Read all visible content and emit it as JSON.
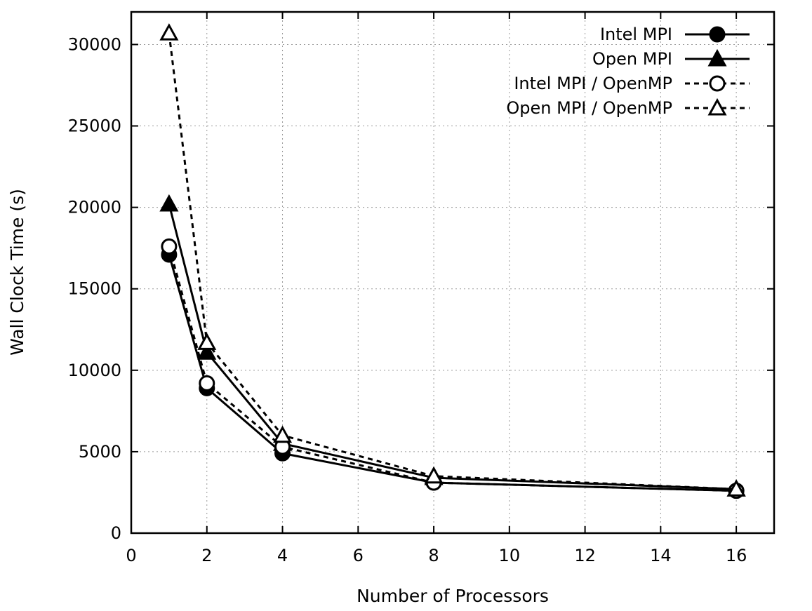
{
  "chart_data": {
    "type": "line",
    "title": "",
    "xlabel": "Number of Processors",
    "ylabel": "Wall Clock Time (s)",
    "xlim": [
      0,
      17
    ],
    "ylim": [
      0,
      32000
    ],
    "xticks": [
      0,
      2,
      4,
      6,
      8,
      10,
      12,
      14,
      16
    ],
    "yticks": [
      0,
      5000,
      10000,
      15000,
      20000,
      25000,
      30000
    ],
    "grid": true,
    "legend_position": "top-right",
    "series": [
      {
        "name": "Intel MPI",
        "marker": "filled-circle",
        "line": "solid",
        "x": [
          1,
          2,
          4,
          8,
          16
        ],
        "values": [
          17100,
          8900,
          4900,
          3100,
          2600
        ]
      },
      {
        "name": "Open MPI",
        "marker": "filled-triangle",
        "line": "solid",
        "x": [
          1,
          2,
          4,
          8,
          16
        ],
        "values": [
          20200,
          11100,
          5500,
          3400,
          2700
        ]
      },
      {
        "name": "Intel MPI / OpenMP",
        "marker": "open-circle",
        "line": "dashed",
        "x": [
          1,
          2,
          4,
          8,
          16
        ],
        "values": [
          17600,
          9200,
          5300,
          3100,
          2600
        ]
      },
      {
        "name": "Open MPI / OpenMP",
        "marker": "open-triangle",
        "line": "dashed",
        "x": [
          1,
          2,
          4,
          8,
          16
        ],
        "values": [
          30700,
          11700,
          6000,
          3500,
          2700
        ]
      }
    ]
  }
}
